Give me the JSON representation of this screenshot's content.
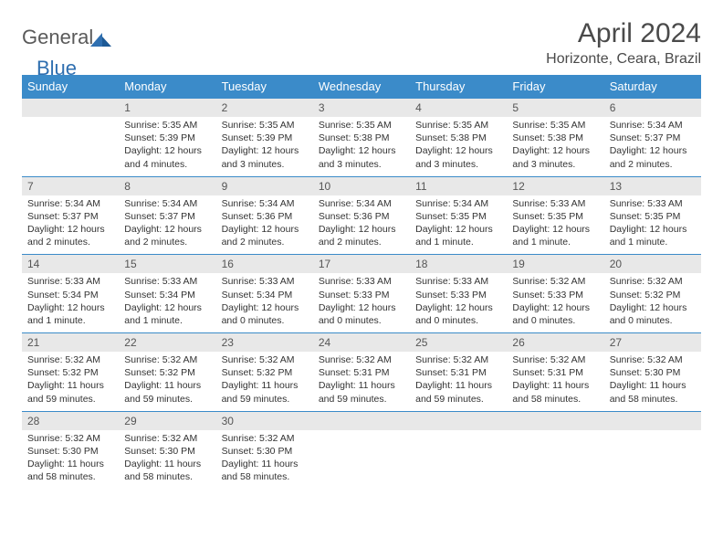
{
  "logo": {
    "part1": "General",
    "part2": "Blue"
  },
  "title": "April 2024",
  "location": "Horizonte, Ceara, Brazil",
  "colors": {
    "header_bg": "#3b8bc9",
    "header_text": "#ffffff",
    "daynum_bg": "#e8e8e8",
    "row_border": "#3b8bc9",
    "logo_gray": "#5a5a5a",
    "logo_blue": "#2f6fb0"
  },
  "day_labels": [
    "Sunday",
    "Monday",
    "Tuesday",
    "Wednesday",
    "Thursday",
    "Friday",
    "Saturday"
  ],
  "weeks": [
    [
      {
        "blank": true
      },
      {
        "num": "1",
        "sunrise": "5:35 AM",
        "sunset": "5:39 PM",
        "daylight": "12 hours and 4 minutes."
      },
      {
        "num": "2",
        "sunrise": "5:35 AM",
        "sunset": "5:39 PM",
        "daylight": "12 hours and 3 minutes."
      },
      {
        "num": "3",
        "sunrise": "5:35 AM",
        "sunset": "5:38 PM",
        "daylight": "12 hours and 3 minutes."
      },
      {
        "num": "4",
        "sunrise": "5:35 AM",
        "sunset": "5:38 PM",
        "daylight": "12 hours and 3 minutes."
      },
      {
        "num": "5",
        "sunrise": "5:35 AM",
        "sunset": "5:38 PM",
        "daylight": "12 hours and 3 minutes."
      },
      {
        "num": "6",
        "sunrise": "5:34 AM",
        "sunset": "5:37 PM",
        "daylight": "12 hours and 2 minutes."
      }
    ],
    [
      {
        "num": "7",
        "sunrise": "5:34 AM",
        "sunset": "5:37 PM",
        "daylight": "12 hours and 2 minutes."
      },
      {
        "num": "8",
        "sunrise": "5:34 AM",
        "sunset": "5:37 PM",
        "daylight": "12 hours and 2 minutes."
      },
      {
        "num": "9",
        "sunrise": "5:34 AM",
        "sunset": "5:36 PM",
        "daylight": "12 hours and 2 minutes."
      },
      {
        "num": "10",
        "sunrise": "5:34 AM",
        "sunset": "5:36 PM",
        "daylight": "12 hours and 2 minutes."
      },
      {
        "num": "11",
        "sunrise": "5:34 AM",
        "sunset": "5:35 PM",
        "daylight": "12 hours and 1 minute."
      },
      {
        "num": "12",
        "sunrise": "5:33 AM",
        "sunset": "5:35 PM",
        "daylight": "12 hours and 1 minute."
      },
      {
        "num": "13",
        "sunrise": "5:33 AM",
        "sunset": "5:35 PM",
        "daylight": "12 hours and 1 minute."
      }
    ],
    [
      {
        "num": "14",
        "sunrise": "5:33 AM",
        "sunset": "5:34 PM",
        "daylight": "12 hours and 1 minute."
      },
      {
        "num": "15",
        "sunrise": "5:33 AM",
        "sunset": "5:34 PM",
        "daylight": "12 hours and 1 minute."
      },
      {
        "num": "16",
        "sunrise": "5:33 AM",
        "sunset": "5:34 PM",
        "daylight": "12 hours and 0 minutes."
      },
      {
        "num": "17",
        "sunrise": "5:33 AM",
        "sunset": "5:33 PM",
        "daylight": "12 hours and 0 minutes."
      },
      {
        "num": "18",
        "sunrise": "5:33 AM",
        "sunset": "5:33 PM",
        "daylight": "12 hours and 0 minutes."
      },
      {
        "num": "19",
        "sunrise": "5:32 AM",
        "sunset": "5:33 PM",
        "daylight": "12 hours and 0 minutes."
      },
      {
        "num": "20",
        "sunrise": "5:32 AM",
        "sunset": "5:32 PM",
        "daylight": "12 hours and 0 minutes."
      }
    ],
    [
      {
        "num": "21",
        "sunrise": "5:32 AM",
        "sunset": "5:32 PM",
        "daylight": "11 hours and 59 minutes."
      },
      {
        "num": "22",
        "sunrise": "5:32 AM",
        "sunset": "5:32 PM",
        "daylight": "11 hours and 59 minutes."
      },
      {
        "num": "23",
        "sunrise": "5:32 AM",
        "sunset": "5:32 PM",
        "daylight": "11 hours and 59 minutes."
      },
      {
        "num": "24",
        "sunrise": "5:32 AM",
        "sunset": "5:31 PM",
        "daylight": "11 hours and 59 minutes."
      },
      {
        "num": "25",
        "sunrise": "5:32 AM",
        "sunset": "5:31 PM",
        "daylight": "11 hours and 59 minutes."
      },
      {
        "num": "26",
        "sunrise": "5:32 AM",
        "sunset": "5:31 PM",
        "daylight": "11 hours and 58 minutes."
      },
      {
        "num": "27",
        "sunrise": "5:32 AM",
        "sunset": "5:30 PM",
        "daylight": "11 hours and 58 minutes."
      }
    ],
    [
      {
        "num": "28",
        "sunrise": "5:32 AM",
        "sunset": "5:30 PM",
        "daylight": "11 hours and 58 minutes."
      },
      {
        "num": "29",
        "sunrise": "5:32 AM",
        "sunset": "5:30 PM",
        "daylight": "11 hours and 58 minutes."
      },
      {
        "num": "30",
        "sunrise": "5:32 AM",
        "sunset": "5:30 PM",
        "daylight": "11 hours and 58 minutes."
      },
      {
        "blank": true
      },
      {
        "blank": true
      },
      {
        "blank": true
      },
      {
        "blank": true
      }
    ]
  ]
}
